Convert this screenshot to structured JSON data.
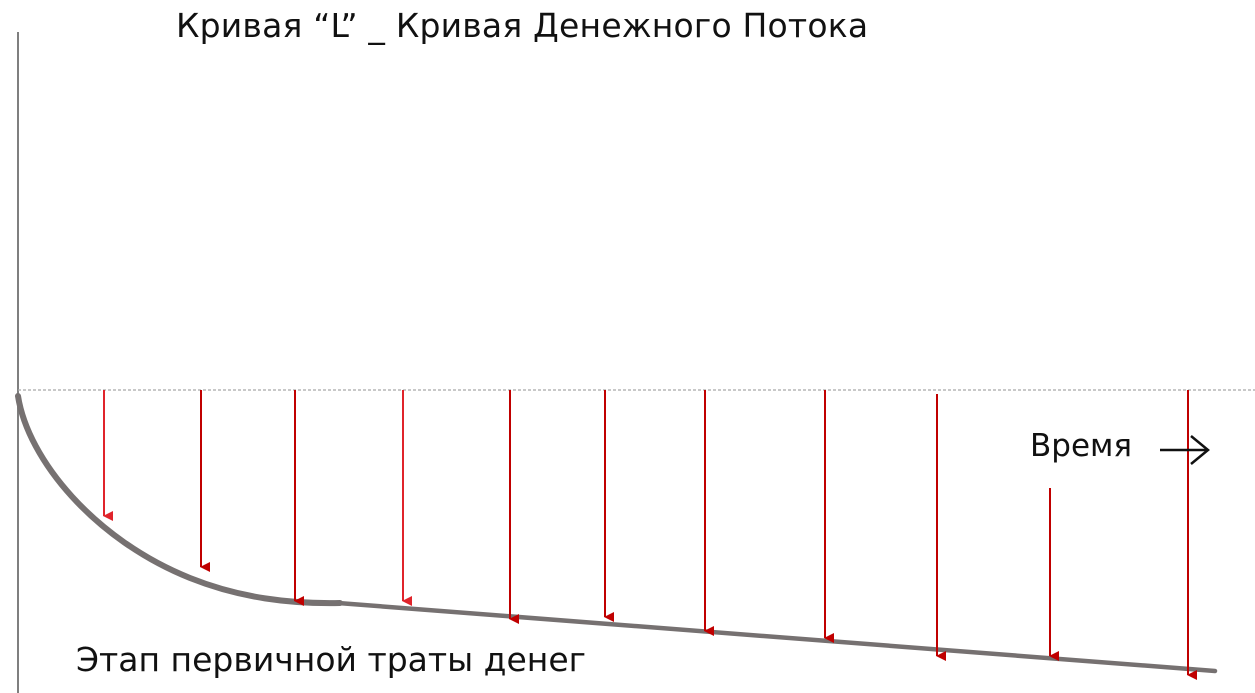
{
  "diagram": {
    "title": "Кривая “L” _ Кривая Денежного Потока",
    "time_label": "Время",
    "time_arrow_icon": "arrow-right-icon",
    "stage_label": "Этап первичной траты денег",
    "colors": {
      "axis": "#7f7f7f",
      "baseline": "#a6a6a6",
      "curve": "#767171",
      "arrow_early": "#e0242b",
      "arrow_late": "#c00000",
      "text": "#111111"
    }
  }
}
